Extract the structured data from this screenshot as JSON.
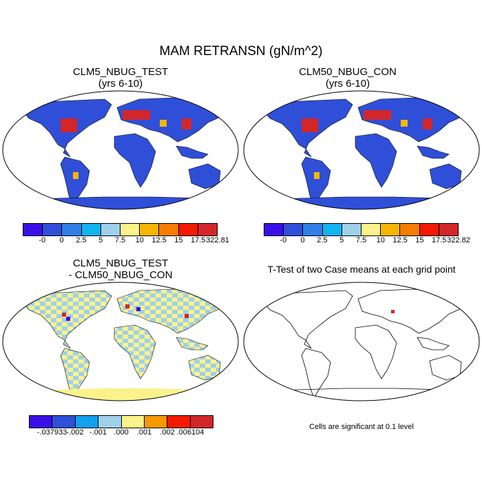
{
  "title": "MAM RETRANSN (gN/m^2)",
  "panels": {
    "test": {
      "title_line1": "CLM5_NBUG_TEST",
      "title_line2": "(yrs 6-10)"
    },
    "control": {
      "title_line1": "CLM50_NBUG_CON",
      "title_line2": "(yrs 6-10)"
    },
    "difference": {
      "title_line1": "CLM5_NBUG_TEST",
      "title_line2": "- CLM50_NBUG_CON"
    },
    "ttest": {
      "title": "T-Test of two Case means at each grid point",
      "note": "Cells are significant at 0.1 level"
    }
  },
  "colorbars": {
    "test": {
      "colors": [
        "#3a10e8",
        "#2f4fd8",
        "#2f7fe8",
        "#12b4ef",
        "#9fd0ea",
        "#fbf28c",
        "#f6b600",
        "#f57c00",
        "#f31a00",
        "#d3262a"
      ],
      "labels": [
        "-0",
        "0",
        "2.5",
        "5",
        "7.5",
        "10",
        "12.5",
        "15",
        "17.5",
        "322.81"
      ]
    },
    "control": {
      "colors": [
        "#3a10e8",
        "#2f4fd8",
        "#2f7fe8",
        "#12b4ef",
        "#9fd0ea",
        "#fbf28c",
        "#f6b600",
        "#f57c00",
        "#f31a00",
        "#d3262a"
      ],
      "labels": [
        "-0",
        "0",
        "2.5",
        "5",
        "7.5",
        "10",
        "12.5",
        "15",
        "17.5",
        "322.82"
      ]
    },
    "difference": {
      "colors": [
        "#3a10e8",
        "#2f4fd8",
        "#12a0ef",
        "#9fd0ea",
        "#fbf28c",
        "#f69a00",
        "#f31a00",
        "#d3262a"
      ],
      "labels": [
        "-.037933",
        "-.002",
        "-.001",
        ".000",
        ".001",
        ".002",
        ".006104"
      ]
    }
  },
  "map_colors": {
    "base_test": "#2f4fd8",
    "hot": "#d3262a",
    "warm": "#f6b600",
    "diff_base": "#fbf28c",
    "diff_alt": "#9fd0ea",
    "diff_hot": "#d3262a",
    "diff_cold": "#3a10e8",
    "sig_cell": "#d3262a"
  }
}
